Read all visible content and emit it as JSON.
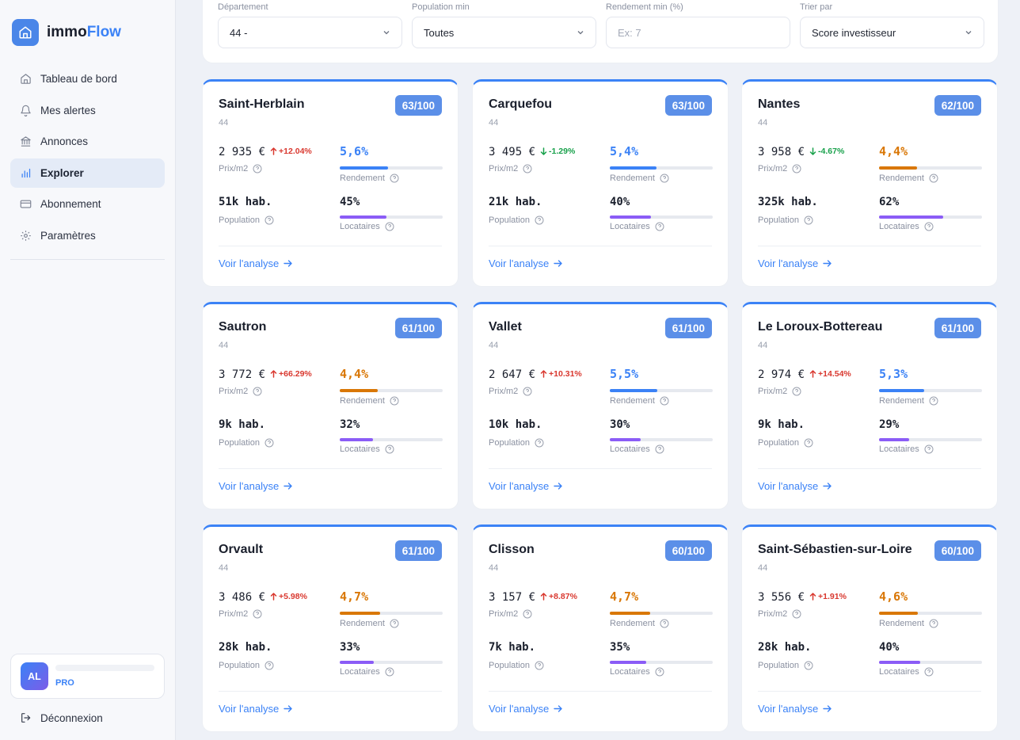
{
  "app": {
    "name_part1": "immo",
    "name_part2": "Flow"
  },
  "sidebar": {
    "items": [
      {
        "label": "Tableau de bord",
        "icon": "home-icon"
      },
      {
        "label": "Mes alertes",
        "icon": "bell-icon"
      },
      {
        "label": "Annonces",
        "icon": "bank-icon"
      },
      {
        "label": "Explorer",
        "icon": "bar-chart-icon",
        "active": true
      },
      {
        "label": "Abonnement",
        "icon": "credit-card-icon"
      },
      {
        "label": "Paramètres",
        "icon": "gear-icon"
      }
    ],
    "user": {
      "initials": "AL",
      "plan": "PRO"
    },
    "logout": "Déconnexion"
  },
  "filters": {
    "departement": {
      "label": "Département",
      "value": "44 -"
    },
    "population": {
      "label": "Population min",
      "value": "Toutes"
    },
    "rendement": {
      "label": "Rendement min (%)",
      "placeholder": "Ex: 7"
    },
    "tri": {
      "label": "Trier par",
      "value": "Score investisseur"
    }
  },
  "labels": {
    "prix": "Prix/m2",
    "rendement": "Rendement",
    "population": "Population",
    "locataires": "Locataires",
    "voir": "Voir l'analyse"
  },
  "colors": {
    "accent": "#3b82f6",
    "yield_high": "#3b82f6",
    "yield_mid": "#d97706",
    "tenants_bar": "#8b5cf6",
    "trend_up": "#d9382f",
    "trend_down": "#18a14b"
  },
  "cities": [
    {
      "name": "Saint-Herblain",
      "dept": "44",
      "score": "63/100",
      "price": "2 935",
      "trend": "+12.04%",
      "trend_dir": "up",
      "yield": "5,6%",
      "yield_level": "high",
      "yield_pct": 0.47,
      "population": "51k hab.",
      "tenants": "45%",
      "tenants_pct": 0.45
    },
    {
      "name": "Carquefou",
      "dept": "44",
      "score": "63/100",
      "price": "3 495",
      "trend": "-1.29%",
      "trend_dir": "down",
      "yield": "5,4%",
      "yield_level": "high",
      "yield_pct": 0.45,
      "population": "21k hab.",
      "tenants": "40%",
      "tenants_pct": 0.4
    },
    {
      "name": "Nantes",
      "dept": "44",
      "score": "62/100",
      "price": "3 958",
      "trend": "-4.67%",
      "trend_dir": "down",
      "yield": "4,4%",
      "yield_level": "mid",
      "yield_pct": 0.37,
      "population": "325k hab.",
      "tenants": "62%",
      "tenants_pct": 0.62
    },
    {
      "name": "Sautron",
      "dept": "44",
      "score": "61/100",
      "price": "3 772",
      "trend": "+66.29%",
      "trend_dir": "up",
      "yield": "4,4%",
      "yield_level": "mid",
      "yield_pct": 0.37,
      "population": "9k hab.",
      "tenants": "32%",
      "tenants_pct": 0.32
    },
    {
      "name": "Vallet",
      "dept": "44",
      "score": "61/100",
      "price": "2 647",
      "trend": "+10.31%",
      "trend_dir": "up",
      "yield": "5,5%",
      "yield_level": "high",
      "yield_pct": 0.46,
      "population": "10k hab.",
      "tenants": "30%",
      "tenants_pct": 0.3
    },
    {
      "name": "Le Loroux-Bottereau",
      "dept": "44",
      "score": "61/100",
      "price": "2 974",
      "trend": "+14.54%",
      "trend_dir": "up",
      "yield": "5,3%",
      "yield_level": "high",
      "yield_pct": 0.44,
      "population": "9k hab.",
      "tenants": "29%",
      "tenants_pct": 0.29
    },
    {
      "name": "Orvault",
      "dept": "44",
      "score": "61/100",
      "price": "3 486",
      "trend": "+5.98%",
      "trend_dir": "up",
      "yield": "4,7%",
      "yield_level": "mid",
      "yield_pct": 0.39,
      "population": "28k hab.",
      "tenants": "33%",
      "tenants_pct": 0.33
    },
    {
      "name": "Clisson",
      "dept": "44",
      "score": "60/100",
      "price": "3 157",
      "trend": "+8.87%",
      "trend_dir": "up",
      "yield": "4,7%",
      "yield_level": "mid",
      "yield_pct": 0.39,
      "population": "7k hab.",
      "tenants": "35%",
      "tenants_pct": 0.35
    },
    {
      "name": "Saint-Sébastien-sur-Loire",
      "dept": "44",
      "score": "60/100",
      "price": "3 556",
      "trend": "+1.91%",
      "trend_dir": "up",
      "yield": "4,6%",
      "yield_level": "mid",
      "yield_pct": 0.38,
      "population": "28k hab.",
      "tenants": "40%",
      "tenants_pct": 0.4
    }
  ]
}
